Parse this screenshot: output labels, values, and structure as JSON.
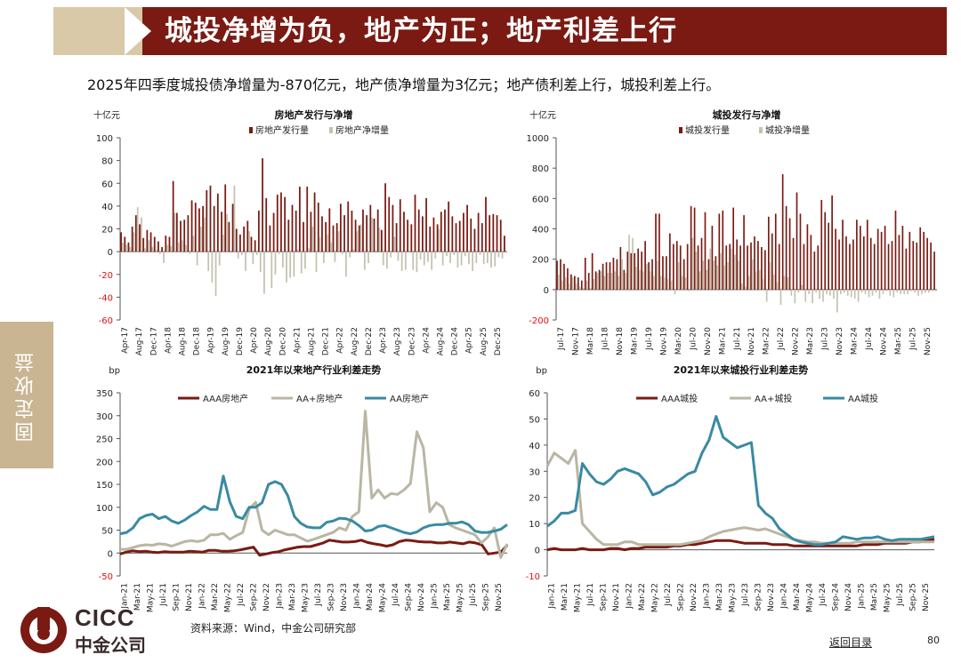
{
  "header": {
    "title": "城投净增为负，地产为正；地产利差上行"
  },
  "subtitle": "2025年四季度城投债净增量为-870亿元，地产债净增量为3亿元；地产债利差上行，城投利差上行。",
  "side_tab": "固定收益",
  "footer": {
    "source": "资料来源：Wind，中金公司研究部",
    "back_link": "返回目录",
    "page_number": "80"
  },
  "logo": {
    "name": "CICC",
    "cn_name": "中金公司"
  },
  "colors": {
    "brand": "#7a1a12",
    "tab": "#c9b592",
    "aaa": "#7a1a12",
    "aaplus": "#b9b6a3",
    "aa": "#3a8aa3",
    "issuance": "#7a1a12",
    "net": "#c4c2af"
  },
  "chart_data": [
    {
      "id": "re_bar",
      "type": "bar",
      "title": "房地产发行与净增",
      "unit": "十亿元",
      "legend": [
        "房地产发行量",
        "房地产净增量"
      ],
      "ylim": [
        -60,
        100
      ],
      "yticks": [
        -60,
        -40,
        -20,
        0,
        20,
        40,
        60,
        80,
        100
      ],
      "xticks": [
        "Apr-17",
        "Aug-17",
        "Dec-17",
        "Apr-18",
        "Aug-18",
        "Dec-18",
        "Apr-19",
        "Aug-19",
        "Dec-19",
        "Apr-20",
        "Aug-20",
        "Dec-20",
        "Apr-21",
        "Aug-21",
        "Dec-21",
        "Apr-22",
        "Aug-22",
        "Dec-22",
        "Apr-23",
        "Aug-23",
        "Dec-23",
        "Apr-24",
        "Aug-24",
        "Dec-24",
        "Apr-25",
        "Aug-25",
        "Dec-25"
      ],
      "issuance": [
        17,
        13,
        8,
        22,
        32,
        24,
        12,
        19,
        17,
        13,
        9,
        4,
        14,
        13,
        62,
        34,
        27,
        28,
        32,
        45,
        43,
        38,
        40,
        54,
        58,
        40,
        51,
        35,
        59,
        26,
        42,
        20,
        15,
        22,
        27,
        13,
        10,
        36,
        82,
        47,
        23,
        34,
        50,
        52,
        48,
        28,
        41,
        36,
        57,
        26,
        57,
        35,
        52,
        43,
        31,
        26,
        38,
        23,
        25,
        42,
        32,
        44,
        36,
        28,
        23,
        37,
        32,
        41,
        29,
        37,
        19,
        60,
        48,
        41,
        25,
        46,
        35,
        28,
        24,
        50,
        37,
        31,
        47,
        22,
        30,
        24,
        35,
        37,
        44,
        31,
        25,
        27,
        34,
        41,
        29,
        20,
        34,
        25,
        48,
        32,
        33,
        32,
        28,
        14
      ],
      "net": [
        8,
        6,
        4,
        17,
        39,
        30,
        3,
        10,
        4,
        2,
        -2,
        -10,
        6,
        5,
        34,
        8,
        10,
        6,
        -2,
        14,
        -12,
        22,
        30,
        -17,
        -27,
        -39,
        -12,
        15,
        33,
        0,
        58,
        -6,
        -3,
        -17,
        18,
        -11,
        -3,
        -18,
        -37,
        0,
        -32,
        -20,
        -2,
        -14,
        -27,
        -23,
        -22,
        2,
        -19,
        -15,
        3,
        22,
        -18,
        13,
        -10,
        15,
        8,
        -9,
        18,
        -2,
        -22,
        -5,
        2,
        18,
        24,
        -16,
        -10,
        30,
        -1,
        21,
        -12,
        -15,
        -5,
        13,
        -8,
        -17,
        -16,
        -1,
        -16,
        -18,
        -7,
        -12,
        -9,
        -16,
        -6,
        20,
        -12,
        -4,
        -10,
        -3,
        -14,
        -12,
        -4,
        -11,
        -17,
        -10,
        -3,
        -11,
        -10,
        -14,
        -13,
        -5,
        -6,
        -1
      ]
    },
    {
      "id": "lgfv_bar",
      "type": "bar",
      "title": "城投发行与净增",
      "unit": "十亿元",
      "legend": [
        "城投发行量",
        "城投净增量"
      ],
      "ylim": [
        -200,
        1000
      ],
      "yticks": [
        -200,
        0,
        200,
        400,
        600,
        800,
        1000
      ],
      "xticks": [
        "Jul-17",
        "Nov-17",
        "Mar-18",
        "Jul-18",
        "Nov-18",
        "Mar-19",
        "Jul-19",
        "Nov-19",
        "Mar-20",
        "Jul-20",
        "Nov-20",
        "Mar-21",
        "Jul-21",
        "Nov-21",
        "Mar-22",
        "Jul-22",
        "Nov-22",
        "Mar-23",
        "Jul-23",
        "Nov-23",
        "Mar-24",
        "Jul-24",
        "Nov-24",
        "Mar-25",
        "Jul-25",
        "Nov-25"
      ],
      "issuance": [
        190,
        200,
        170,
        140,
        100,
        90,
        80,
        60,
        210,
        110,
        240,
        120,
        130,
        170,
        180,
        180,
        210,
        200,
        280,
        130,
        250,
        240,
        240,
        270,
        250,
        320,
        180,
        200,
        500,
        500,
        220,
        220,
        370,
        300,
        320,
        290,
        200,
        300,
        550,
        540,
        290,
        340,
        510,
        200,
        420,
        220,
        500,
        520,
        290,
        300,
        540,
        330,
        290,
        490,
        290,
        310,
        350,
        320,
        280,
        260,
        480,
        370,
        500,
        300,
        760,
        550,
        470,
        340,
        640,
        500,
        300,
        430,
        360,
        250,
        290,
        590,
        510,
        440,
        620,
        400,
        330,
        460,
        350,
        300,
        330,
        460,
        420,
        350,
        460,
        340,
        300,
        400,
        380,
        420,
        300,
        320,
        520,
        360,
        420,
        270,
        380,
        320,
        310,
        410,
        380,
        340,
        310,
        250
      ],
      "net": [
        100,
        60,
        80,
        40,
        80,
        40,
        20,
        10,
        60,
        10,
        70,
        110,
        120,
        90,
        110,
        110,
        120,
        90,
        200,
        110,
        360,
        340,
        150,
        130,
        120,
        170,
        120,
        90,
        190,
        90,
        80,
        70,
        60,
        -30,
        180,
        90,
        80,
        -10,
        340,
        250,
        120,
        190,
        130,
        270,
        190,
        160,
        240,
        160,
        180,
        270,
        230,
        190,
        40,
        20,
        90,
        200,
        120,
        130,
        70,
        -80,
        180,
        100,
        50,
        -100,
        90,
        80,
        -40,
        -90,
        -20,
        30,
        -80,
        -30,
        -90,
        -20,
        -60,
        -80,
        -30,
        -40,
        -60,
        -150,
        -30,
        -20,
        -40,
        -50,
        -60,
        -80,
        -20,
        -30,
        -50,
        -40,
        -20,
        -60,
        -30,
        -10,
        -40,
        -50,
        -20,
        -30,
        -30,
        -30,
        -10,
        -20,
        -40,
        -30,
        -20,
        -20,
        -10,
        -10
      ]
    },
    {
      "id": "re_spread",
      "type": "line",
      "title": "2021年以来地产行业利差走势",
      "unit": "bp",
      "ylim": [
        -50,
        350
      ],
      "yticks": [
        -50,
        0,
        50,
        100,
        150,
        200,
        250,
        300,
        350
      ],
      "xticks": [
        "Jan-21",
        "Mar-21",
        "May-21",
        "Jul-21",
        "Sep-21",
        "Nov-21",
        "Jan-22",
        "Mar-22",
        "May-22",
        "Jul-22",
        "Sep-22",
        "Nov-22",
        "Jan-23",
        "Mar-23",
        "May-23",
        "Jul-23",
        "Sep-23",
        "Nov-23",
        "Jan-24",
        "Mar-24",
        "May-24",
        "Jul-24",
        "Sep-24",
        "Nov-24",
        "Jan-25",
        "Mar-25",
        "May-25",
        "Jul-25",
        "Sep-25",
        "Nov-25"
      ],
      "series": [
        {
          "name": "AAA房地产",
          "values": [
            -2,
            2,
            5,
            3,
            4,
            2,
            1,
            3,
            2,
            2,
            2,
            4,
            3,
            2,
            6,
            6,
            4,
            4,
            5,
            7,
            10,
            13,
            -5,
            -2,
            1,
            3,
            7,
            10,
            13,
            14,
            14,
            18,
            22,
            28,
            26,
            24,
            24,
            25,
            28,
            23,
            20,
            18,
            15,
            18,
            25,
            28,
            27,
            25,
            24,
            24,
            22,
            22,
            24,
            22,
            20,
            24,
            22,
            18,
            -2,
            0,
            2,
            17
          ]
        },
        {
          "name": "AA+房地产",
          "values": [
            8,
            8,
            12,
            16,
            18,
            17,
            20,
            19,
            15,
            20,
            25,
            27,
            25,
            28,
            40,
            40,
            43,
            30,
            38,
            45,
            96,
            111,
            50,
            40,
            50,
            45,
            40,
            40,
            33,
            26,
            30,
            35,
            40,
            45,
            55,
            50,
            80,
            90,
            310,
            120,
            138,
            120,
            130,
            128,
            138,
            152,
            265,
            230,
            90,
            110,
            100,
            62,
            55,
            50,
            45,
            40,
            22,
            35,
            55,
            -10,
            20
          ]
        },
        {
          "name": "AA房地产",
          "values": [
            42,
            45,
            55,
            75,
            82,
            85,
            75,
            80,
            70,
            65,
            72,
            82,
            90,
            102,
            95,
            95,
            168,
            112,
            80,
            75,
            100,
            100,
            110,
            150,
            156,
            150,
            125,
            80,
            65,
            57,
            55,
            55,
            67,
            70,
            76,
            75,
            70,
            60,
            48,
            50,
            58,
            60,
            55,
            50,
            45,
            42,
            46,
            55,
            60,
            62,
            62,
            65,
            65,
            68,
            62,
            48,
            45,
            45,
            48,
            52,
            62
          ]
        }
      ]
    },
    {
      "id": "lgfv_spread",
      "type": "line",
      "title": "2021年以来城投行业利差走势",
      "unit": "bp",
      "ylim": [
        -10,
        60
      ],
      "yticks": [
        -10,
        0,
        10,
        20,
        30,
        40,
        50,
        60
      ],
      "xticks": [
        "Jan-21",
        "Mar-21",
        "May-21",
        "Jul-21",
        "Sep-21",
        "Nov-21",
        "Jan-22",
        "Mar-22",
        "May-22",
        "Jul-22",
        "Sep-22",
        "Nov-22",
        "Jan-23",
        "Mar-23",
        "May-23",
        "Jul-23",
        "Sep-23",
        "Nov-23",
        "Jan-24",
        "Mar-24",
        "May-24",
        "Jul-24",
        "Sep-24",
        "Nov-24",
        "Jan-25",
        "Mar-25",
        "May-25",
        "Jul-25",
        "Sep-25",
        "Nov-25"
      ],
      "series": [
        {
          "name": "AAA城投",
          "values": [
            0,
            0.5,
            0,
            0,
            0,
            0.5,
            0,
            0,
            0,
            0.5,
            0.5,
            0,
            0.5,
            0.5,
            1,
            1,
            1,
            1,
            1.5,
            1.5,
            2,
            2,
            2.5,
            3,
            3.5,
            3.5,
            3.5,
            3,
            2.5,
            2.5,
            2.5,
            2.5,
            2,
            2,
            2,
            1.5,
            1.5,
            1.5,
            1.5,
            1.5,
            1.5,
            1.5,
            1.5,
            1.5,
            1.5,
            2,
            2,
            2,
            2.5,
            2.5,
            2.5,
            2.5,
            3,
            3,
            3.5,
            4
          ]
        },
        {
          "name": "AA+城投",
          "values": [
            32,
            37,
            35,
            33,
            38,
            10,
            7,
            4,
            2,
            2,
            2,
            3,
            3,
            2,
            2,
            2,
            2,
            2,
            2,
            2,
            2.5,
            3,
            3.5,
            5,
            6,
            7,
            7.5,
            8,
            8.5,
            8,
            7.5,
            8,
            7,
            6,
            5,
            4,
            3.5,
            3,
            3,
            2.5,
            2.5,
            2.5,
            2.5,
            2.5,
            3,
            3,
            3,
            3,
            3,
            3,
            3,
            3,
            3,
            3,
            3,
            3
          ]
        },
        {
          "name": "AA城投",
          "values": [
            9,
            11,
            14,
            14,
            15,
            33,
            29,
            26,
            25,
            27,
            30,
            31,
            30,
            29,
            26,
            21,
            22,
            24,
            25,
            27,
            29,
            30,
            37,
            42,
            51,
            43,
            41,
            39,
            40,
            41,
            17,
            14,
            12,
            8,
            6,
            4,
            3,
            2.5,
            2,
            2,
            2.5,
            3,
            5,
            4.5,
            4,
            4.5,
            4.5,
            5,
            4,
            3.5,
            4,
            4,
            4,
            4,
            4.5,
            5
          ]
        }
      ]
    }
  ]
}
